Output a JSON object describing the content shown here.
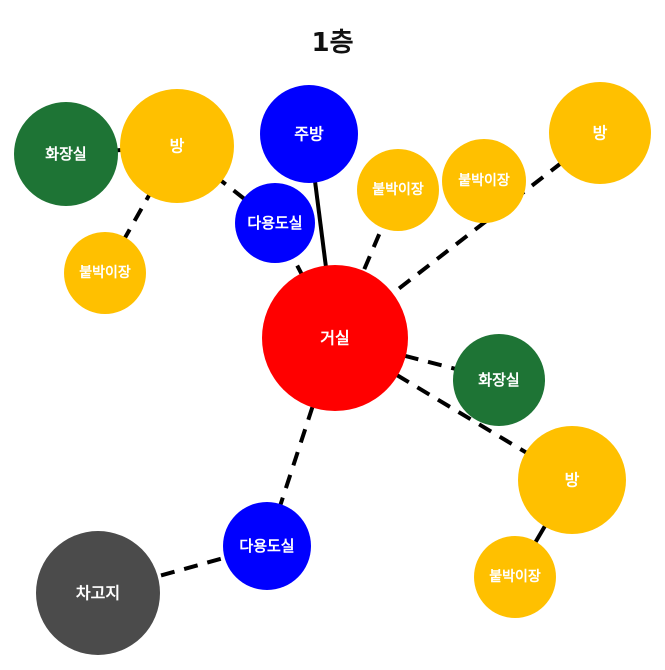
{
  "title": "1층",
  "colors": {
    "living": "#ff0000",
    "room": "#ffc000",
    "bathroom": "#1e7435",
    "kitchen": "#0000ff",
    "multipurpose": "#0000ff",
    "closet": "#ffc000",
    "garage": "#4b4b4b",
    "edge": "#000000"
  },
  "nodes": [
    {
      "id": "bath-left",
      "label": "화장실",
      "type": "bathroom"
    },
    {
      "id": "room-left",
      "label": "방",
      "type": "room"
    },
    {
      "id": "closet-left",
      "label": "붙박이장",
      "type": "closet"
    },
    {
      "id": "kitchen",
      "label": "주방",
      "type": "kitchen"
    },
    {
      "id": "multi-upper",
      "label": "다용도실",
      "type": "multipurpose"
    },
    {
      "id": "closet-mid",
      "label": "붙박이장",
      "type": "closet"
    },
    {
      "id": "closet-right",
      "label": "붙박이장",
      "type": "closet"
    },
    {
      "id": "room-top-right",
      "label": "방",
      "type": "room"
    },
    {
      "id": "living",
      "label": "거실",
      "type": "living"
    },
    {
      "id": "bath-right",
      "label": "화장실",
      "type": "bathroom"
    },
    {
      "id": "room-right",
      "label": "방",
      "type": "room"
    },
    {
      "id": "closet-bottom",
      "label": "붙박이장",
      "type": "closet"
    },
    {
      "id": "multi-lower",
      "label": "다용도실",
      "type": "multipurpose"
    },
    {
      "id": "garage",
      "label": "차고지",
      "type": "garage"
    }
  ],
  "edges": [
    {
      "from": "bath-left",
      "to": "room-left",
      "style": "solid"
    },
    {
      "from": "room-left",
      "to": "closet-left",
      "style": "dashed"
    },
    {
      "from": "room-left",
      "to": "multi-upper",
      "style": "dashed"
    },
    {
      "from": "multi-upper",
      "to": "living",
      "style": "dashed"
    },
    {
      "from": "kitchen",
      "to": "living",
      "style": "solid"
    },
    {
      "from": "closet-mid",
      "to": "living",
      "style": "dashed"
    },
    {
      "from": "room-top-right",
      "to": "living",
      "style": "dashed"
    },
    {
      "from": "living",
      "to": "bath-right",
      "style": "dashed"
    },
    {
      "from": "living",
      "to": "room-right",
      "style": "dashed"
    },
    {
      "from": "room-right",
      "to": "closet-bottom",
      "style": "solid"
    },
    {
      "from": "living",
      "to": "multi-lower",
      "style": "dashed"
    },
    {
      "from": "multi-lower",
      "to": "garage",
      "style": "dashed"
    }
  ]
}
